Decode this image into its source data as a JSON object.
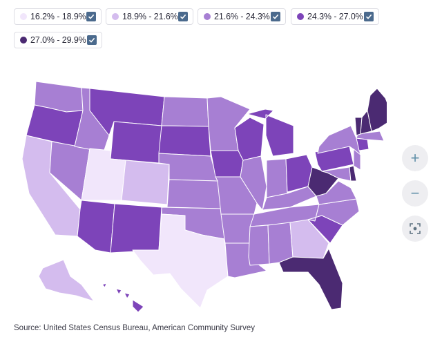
{
  "legend": [
    {
      "label": "16.2% - 18.9%",
      "color": "#f1e6fb",
      "checked": true
    },
    {
      "label": "18.9% - 21.6%",
      "color": "#d4bcee",
      "checked": true
    },
    {
      "label": "21.6% - 24.3%",
      "color": "#a77fd3",
      "checked": true
    },
    {
      "label": "24.3% - 27.0%",
      "color": "#7d44b9",
      "checked": true
    },
    {
      "label": "27.0% - 29.9%",
      "color": "#4b2a72",
      "checked": true
    }
  ],
  "zoom_controls": {
    "zoom_in": "+",
    "zoom_out": "−"
  },
  "source": "Source: United States Census Bureau, American Community Survey",
  "map": {
    "type": "choropleth",
    "region": "United States",
    "state_classes": {
      "Washington": 2,
      "Oregon": 3,
      "California": 1,
      "Nevada": 2,
      "Idaho": 2,
      "Montana": 3,
      "Wyoming": 3,
      "Utah": 0,
      "Colorado": 1,
      "Arizona": 3,
      "New Mexico": 3,
      "North Dakota": 2,
      "South Dakota": 3,
      "Nebraska": 2,
      "Kansas": 2,
      "Oklahoma": 2,
      "Texas": 0,
      "Minnesota": 2,
      "Iowa": 3,
      "Missouri": 2,
      "Arkansas": 2,
      "Louisiana": 2,
      "Wisconsin": 3,
      "Illinois": 2,
      "Michigan": 3,
      "Indiana": 2,
      "Ohio": 3,
      "Kentucky": 2,
      "Tennessee": 2,
      "Mississippi": 2,
      "Alabama": 2,
      "Georgia": 1,
      "Florida": 4,
      "South Carolina": 3,
      "North Carolina": 2,
      "Virginia": 2,
      "West Virginia": 4,
      "Pennsylvania": 3,
      "New York": 2,
      "Vermont": 4,
      "New Hampshire": 4,
      "Maine": 4,
      "Massachusetts": 2,
      "Connecticut": 3,
      "New Jersey": 2,
      "Delaware": 4,
      "Maryland": 2,
      "Alaska": 1,
      "Hawaii": 3
    }
  }
}
